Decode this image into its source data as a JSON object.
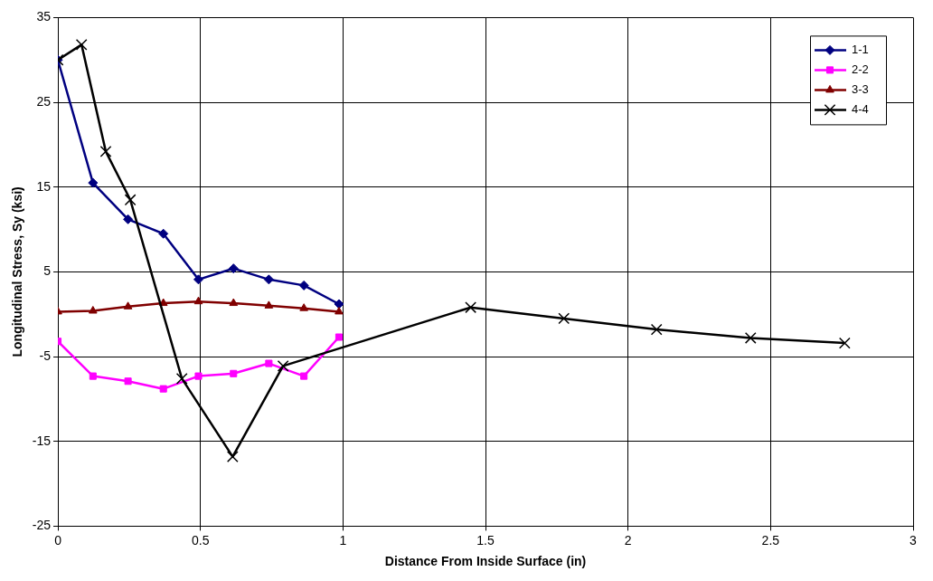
{
  "chart_data": {
    "type": "line",
    "xlabel": "Distance From Inside Surface (in)",
    "ylabel": "Longitudinal Stress, Sy (ksi)",
    "xlim": [
      0,
      3
    ],
    "xticks": [
      0,
      0.5,
      1,
      1.5,
      2,
      2.5,
      3
    ],
    "ylim": [
      -25,
      35
    ],
    "yticks": [
      -25,
      -15,
      -5,
      5,
      15,
      25,
      35
    ],
    "grid": true,
    "legend": "top right",
    "line_style": "solid",
    "series": [
      {
        "name": "1-1",
        "color": "#000080",
        "marker": "diamond",
        "x": [
          0,
          0.123,
          0.246,
          0.37,
          0.493,
          0.616,
          0.74,
          0.863,
          0.986
        ],
        "values": [
          30,
          15.5,
          11.2,
          9.5,
          4.1,
          5.4,
          4.1,
          3.4,
          1.2
        ]
      },
      {
        "name": "2-2",
        "color": "#ff00ff",
        "marker": "square",
        "x": [
          0,
          0.123,
          0.246,
          0.37,
          0.493,
          0.616,
          0.74,
          0.863,
          0.986
        ],
        "values": [
          -3.2,
          -7.3,
          -7.9,
          -8.8,
          -7.3,
          -7.0,
          -5.8,
          -7.3,
          -2.7
        ]
      },
      {
        "name": "3-3",
        "color": "#800000",
        "marker": "triangle",
        "x": [
          0,
          0.123,
          0.246,
          0.37,
          0.493,
          0.616,
          0.74,
          0.863,
          0.986
        ],
        "values": [
          0.3,
          0.4,
          0.9,
          1.3,
          1.5,
          1.3,
          1.0,
          0.7,
          0.3
        ]
      },
      {
        "name": "4-4",
        "color": "#000000",
        "marker": "cross",
        "x": [
          0,
          0.083,
          0.168,
          0.254,
          0.435,
          0.613,
          0.79,
          1.448,
          1.775,
          2.1,
          2.43,
          2.76
        ],
        "values": [
          30,
          31.8,
          19.2,
          13.5,
          -7.6,
          -16.8,
          -6.1,
          0.8,
          -0.5,
          -1.8,
          -2.8,
          -3.4
        ]
      }
    ]
  }
}
